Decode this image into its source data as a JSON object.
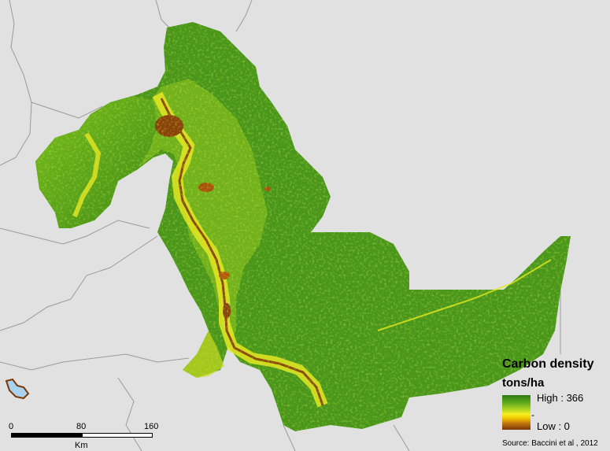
{
  "legend": {
    "title": "Carbon density",
    "unit": "tons/ha",
    "high_label": "High : 366",
    "low_label": "Low : 0",
    "mid_mark": "-",
    "colors": [
      "#2e7a14",
      "#5aa51c",
      "#a8d020",
      "#f5f020",
      "#f0c000",
      "#c07010",
      "#7a3a08"
    ]
  },
  "source": "Source: Baccini et al , 2012",
  "scale": {
    "ticks": [
      "0",
      "80",
      "160"
    ],
    "unit": "Km"
  },
  "colors": {
    "background": "#e1e1e1",
    "boundary": "#9a9a9a",
    "forest_dark": "#2e7a14",
    "forest_mid": "#5aa51c",
    "forest_light": "#a8d020",
    "yellow": "#f5f020",
    "brown": "#7a3a08",
    "lake": "#a9d3f0"
  }
}
